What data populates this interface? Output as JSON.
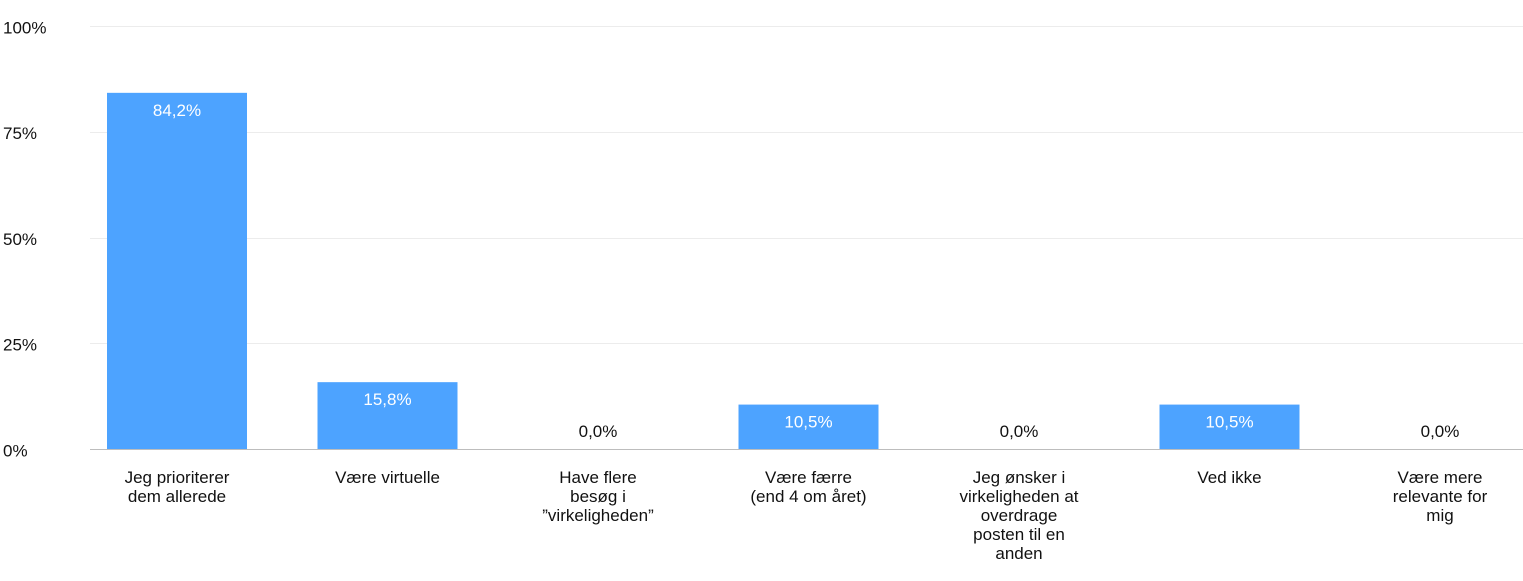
{
  "chart_data": {
    "type": "bar",
    "title": "",
    "xlabel": "",
    "ylabel": "",
    "ylim": [
      0,
      100
    ],
    "yticks": [
      {
        "value": 0,
        "label": "0%"
      },
      {
        "value": 25,
        "label": "25%"
      },
      {
        "value": 50,
        "label": "50%"
      },
      {
        "value": 75,
        "label": "75%"
      },
      {
        "value": 100,
        "label": "100%"
      }
    ],
    "grid": true,
    "bar_color": "#4da3ff",
    "categories": [
      [
        "Jeg prioriterer",
        "dem allerede"
      ],
      [
        "Være virtuelle"
      ],
      [
        "Have flere",
        "besøg i",
        "”virkeligheden”"
      ],
      [
        "Være færre",
        "(end 4 om året)"
      ],
      [
        "Jeg ønsker i",
        "virkeligheden at",
        "overdrage",
        "posten til en",
        "anden"
      ],
      [
        "Ved ikke"
      ],
      [
        "Være mere",
        "relevante for",
        "mig"
      ]
    ],
    "values": [
      84.2,
      15.8,
      0.0,
      10.5,
      0.0,
      10.5,
      0.0
    ],
    "value_labels": [
      "84,2%",
      "15,8%",
      "0,0%",
      "10,5%",
      "0,0%",
      "10,5%",
      "0,0%"
    ]
  }
}
